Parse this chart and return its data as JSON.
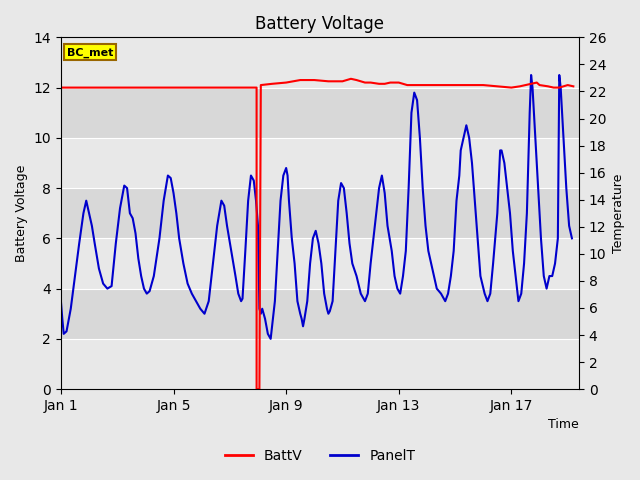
{
  "title": "Battery Voltage",
  "xlabel": "Time",
  "ylabel_left": "Battery Voltage",
  "ylabel_right": "Temperature",
  "ylim_left": [
    0,
    14
  ],
  "ylim_right": [
    0,
    26
  ],
  "yticks_left": [
    0,
    2,
    4,
    6,
    8,
    10,
    12,
    14
  ],
  "yticks_right": [
    0,
    2,
    4,
    6,
    8,
    10,
    12,
    14,
    16,
    18,
    20,
    22,
    24,
    26
  ],
  "fig_bg_color": "#e8e8e8",
  "plot_bg_color": "#d8d8d8",
  "band_light_color": "#e8e8e8",
  "annotation_label": "BC_met",
  "annotation_bg": "#ffff00",
  "annotation_border": "#996600",
  "legend_items": [
    "BattV",
    "PanelT"
  ],
  "batt_color": "#ff0000",
  "panel_color": "#0000cc",
  "batt_linewidth": 1.5,
  "panel_linewidth": 1.5,
  "xlim": [
    1,
    19.4
  ],
  "xtick_positions": [
    1,
    5,
    9,
    13,
    17
  ],
  "xtick_labels": [
    "Jan 1",
    "Jan 5",
    "Jan 9",
    "Jan 13",
    "Jan 17"
  ],
  "batt_data": [
    [
      1.0,
      12.0
    ],
    [
      7.95,
      12.0
    ],
    [
      7.95,
      0.0
    ],
    [
      8.05,
      0.0
    ],
    [
      8.1,
      12.1
    ],
    [
      8.5,
      12.15
    ],
    [
      9.0,
      12.2
    ],
    [
      9.5,
      12.3
    ],
    [
      10.0,
      12.3
    ],
    [
      10.5,
      12.25
    ],
    [
      11.0,
      12.25
    ],
    [
      11.3,
      12.35
    ],
    [
      11.5,
      12.3
    ],
    [
      11.8,
      12.2
    ],
    [
      12.0,
      12.2
    ],
    [
      12.3,
      12.15
    ],
    [
      12.5,
      12.15
    ],
    [
      12.7,
      12.2
    ],
    [
      13.0,
      12.2
    ],
    [
      13.3,
      12.1
    ],
    [
      13.5,
      12.1
    ],
    [
      14.0,
      12.1
    ],
    [
      14.5,
      12.1
    ],
    [
      15.0,
      12.1
    ],
    [
      15.5,
      12.1
    ],
    [
      16.0,
      12.1
    ],
    [
      16.5,
      12.05
    ],
    [
      17.0,
      12.0
    ],
    [
      17.3,
      12.05
    ],
    [
      17.5,
      12.1
    ],
    [
      17.7,
      12.15
    ],
    [
      17.9,
      12.2
    ],
    [
      18.0,
      12.1
    ],
    [
      18.3,
      12.05
    ],
    [
      18.5,
      12.0
    ],
    [
      18.7,
      12.0
    ],
    [
      19.0,
      12.1
    ],
    [
      19.2,
      12.05
    ]
  ],
  "panel_data": [
    [
      1.0,
      3.5
    ],
    [
      1.05,
      2.8
    ],
    [
      1.1,
      2.2
    ],
    [
      1.2,
      2.3
    ],
    [
      1.35,
      3.2
    ],
    [
      1.5,
      4.5
    ],
    [
      1.65,
      5.8
    ],
    [
      1.8,
      7.0
    ],
    [
      1.9,
      7.5
    ],
    [
      2.0,
      7.0
    ],
    [
      2.1,
      6.5
    ],
    [
      2.2,
      5.8
    ],
    [
      2.35,
      4.8
    ],
    [
      2.5,
      4.2
    ],
    [
      2.65,
      4.0
    ],
    [
      2.8,
      4.1
    ],
    [
      2.95,
      5.8
    ],
    [
      3.1,
      7.2
    ],
    [
      3.25,
      8.1
    ],
    [
      3.35,
      8.0
    ],
    [
      3.45,
      7.0
    ],
    [
      3.55,
      6.8
    ],
    [
      3.65,
      6.2
    ],
    [
      3.75,
      5.2
    ],
    [
      3.85,
      4.5
    ],
    [
      3.95,
      4.0
    ],
    [
      4.05,
      3.8
    ],
    [
      4.15,
      3.9
    ],
    [
      4.3,
      4.5
    ],
    [
      4.5,
      6.0
    ],
    [
      4.65,
      7.5
    ],
    [
      4.8,
      8.5
    ],
    [
      4.9,
      8.4
    ],
    [
      5.0,
      7.8
    ],
    [
      5.1,
      7.0
    ],
    [
      5.2,
      6.0
    ],
    [
      5.35,
      5.0
    ],
    [
      5.5,
      4.2
    ],
    [
      5.65,
      3.8
    ],
    [
      5.8,
      3.5
    ],
    [
      5.95,
      3.2
    ],
    [
      6.1,
      3.0
    ],
    [
      6.25,
      3.5
    ],
    [
      6.4,
      5.0
    ],
    [
      6.55,
      6.5
    ],
    [
      6.7,
      7.5
    ],
    [
      6.8,
      7.3
    ],
    [
      6.9,
      6.5
    ],
    [
      7.05,
      5.5
    ],
    [
      7.2,
      4.5
    ],
    [
      7.3,
      3.8
    ],
    [
      7.4,
      3.5
    ],
    [
      7.45,
      3.6
    ],
    [
      7.55,
      5.5
    ],
    [
      7.65,
      7.5
    ],
    [
      7.75,
      8.5
    ],
    [
      7.85,
      8.3
    ],
    [
      7.93,
      7.5
    ],
    [
      8.0,
      6.5
    ],
    [
      8.05,
      3.2
    ],
    [
      8.1,
      3.0
    ],
    [
      8.15,
      3.2
    ],
    [
      8.25,
      2.8
    ],
    [
      8.35,
      2.2
    ],
    [
      8.45,
      2.0
    ],
    [
      8.5,
      2.5
    ],
    [
      8.6,
      3.5
    ],
    [
      8.7,
      5.5
    ],
    [
      8.8,
      7.5
    ],
    [
      8.9,
      8.5
    ],
    [
      9.0,
      8.8
    ],
    [
      9.05,
      8.5
    ],
    [
      9.1,
      7.5
    ],
    [
      9.2,
      6.0
    ],
    [
      9.3,
      5.0
    ],
    [
      9.4,
      3.5
    ],
    [
      9.5,
      3.0
    ],
    [
      9.55,
      2.8
    ],
    [
      9.6,
      2.5
    ],
    [
      9.65,
      2.8
    ],
    [
      9.75,
      3.5
    ],
    [
      9.85,
      5.0
    ],
    [
      9.95,
      6.0
    ],
    [
      10.05,
      6.3
    ],
    [
      10.15,
      5.8
    ],
    [
      10.25,
      5.0
    ],
    [
      10.35,
      3.8
    ],
    [
      10.45,
      3.2
    ],
    [
      10.5,
      3.0
    ],
    [
      10.55,
      3.1
    ],
    [
      10.65,
      3.5
    ],
    [
      10.75,
      5.5
    ],
    [
      10.85,
      7.5
    ],
    [
      10.95,
      8.2
    ],
    [
      11.05,
      8.0
    ],
    [
      11.15,
      7.0
    ],
    [
      11.25,
      5.8
    ],
    [
      11.35,
      5.0
    ],
    [
      11.5,
      4.5
    ],
    [
      11.65,
      3.8
    ],
    [
      11.8,
      3.5
    ],
    [
      11.9,
      3.8
    ],
    [
      12.0,
      5.0
    ],
    [
      12.15,
      6.5
    ],
    [
      12.3,
      8.0
    ],
    [
      12.4,
      8.5
    ],
    [
      12.5,
      7.8
    ],
    [
      12.6,
      6.5
    ],
    [
      12.75,
      5.5
    ],
    [
      12.85,
      4.5
    ],
    [
      12.95,
      4.0
    ],
    [
      13.05,
      3.8
    ],
    [
      13.15,
      4.5
    ],
    [
      13.25,
      5.5
    ],
    [
      13.35,
      8.0
    ],
    [
      13.45,
      11.0
    ],
    [
      13.55,
      11.8
    ],
    [
      13.65,
      11.5
    ],
    [
      13.75,
      10.0
    ],
    [
      13.85,
      8.0
    ],
    [
      13.95,
      6.5
    ],
    [
      14.05,
      5.5
    ],
    [
      14.15,
      5.0
    ],
    [
      14.25,
      4.5
    ],
    [
      14.35,
      4.0
    ],
    [
      14.5,
      3.8
    ],
    [
      14.65,
      3.5
    ],
    [
      14.75,
      3.8
    ],
    [
      14.85,
      4.5
    ],
    [
      14.95,
      5.5
    ],
    [
      15.05,
      7.5
    ],
    [
      15.15,
      8.5
    ],
    [
      15.2,
      9.5
    ],
    [
      15.3,
      10.0
    ],
    [
      15.4,
      10.5
    ],
    [
      15.5,
      10.0
    ],
    [
      15.6,
      9.0
    ],
    [
      15.7,
      7.5
    ],
    [
      15.8,
      6.0
    ],
    [
      15.9,
      4.5
    ],
    [
      16.05,
      3.8
    ],
    [
      16.15,
      3.5
    ],
    [
      16.25,
      3.8
    ],
    [
      16.35,
      5.0
    ],
    [
      16.5,
      7.0
    ],
    [
      16.6,
      9.5
    ],
    [
      16.65,
      9.5
    ],
    [
      16.75,
      9.0
    ],
    [
      16.85,
      8.0
    ],
    [
      16.95,
      7.0
    ],
    [
      17.05,
      5.5
    ],
    [
      17.15,
      4.5
    ],
    [
      17.25,
      3.5
    ],
    [
      17.35,
      3.8
    ],
    [
      17.45,
      5.0
    ],
    [
      17.55,
      7.0
    ],
    [
      17.65,
      11.0
    ],
    [
      17.7,
      12.5
    ],
    [
      17.75,
      12.0
    ],
    [
      17.85,
      10.0
    ],
    [
      17.95,
      8.0
    ],
    [
      18.05,
      6.0
    ],
    [
      18.15,
      4.5
    ],
    [
      18.25,
      4.0
    ],
    [
      18.35,
      4.5
    ],
    [
      18.45,
      4.5
    ],
    [
      18.55,
      5.0
    ],
    [
      18.65,
      6.0
    ],
    [
      18.7,
      12.5
    ],
    [
      18.75,
      12.0
    ],
    [
      18.85,
      10.0
    ],
    [
      18.95,
      8.0
    ],
    [
      19.05,
      6.5
    ],
    [
      19.15,
      6.0
    ]
  ]
}
